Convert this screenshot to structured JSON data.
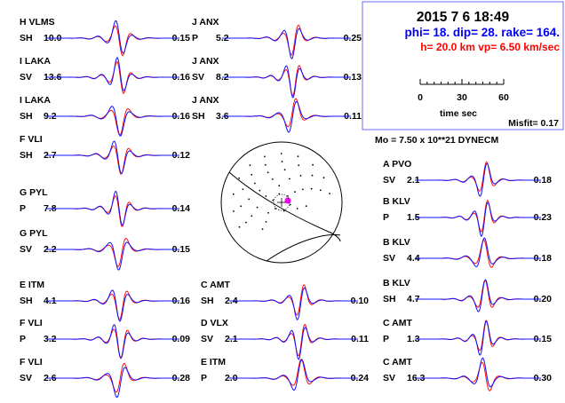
{
  "header": {
    "date_time": "2015  7  6   18:49",
    "mechanism": "phi=  18. dip= 28. rake= 164.",
    "depth_velocity": "h= 20.0 km  vp= 6.50 km/sec",
    "time_axis_ticks": [
      "0",
      "30",
      "60"
    ],
    "time_axis_label": "time sec",
    "misfit": "Misfit= 0.17",
    "moment": "Mo =  7.50 x 10**21 DYNECM"
  },
  "colors": {
    "observed": "#1010ff",
    "synthetic": "#ff1010",
    "title": "#000000",
    "mechanism": "#0000ff",
    "depth": "#ff0000",
    "pole_marker": "#ff00ff",
    "frame": "#6a6aff"
  },
  "chart_data": {
    "type": "line",
    "title": "2015  7  6   18:49",
    "xlabel": "time sec",
    "x_ticks": [
      0,
      30,
      60
    ],
    "mechanism": {
      "phi": 18,
      "dip": 28,
      "rake": 164
    },
    "depth_km": 20.0,
    "vp_km_per_sec": 6.5,
    "misfit": 0.17,
    "moment": "7.50 x 10**21 DYNECM",
    "series": [
      {
        "name": "observed",
        "color": "#1010ff"
      },
      {
        "name": "synthetic",
        "color": "#ff1010"
      }
    ],
    "stations": [
      {
        "code": "H",
        "station": "VLMS",
        "comp": "SH",
        "azimuth": "10.0",
        "amp": "0.15"
      },
      {
        "code": "I",
        "station": "LAKA",
        "comp": "SV",
        "azimuth": "13.6",
        "amp": "0.16"
      },
      {
        "code": "I",
        "station": "LAKA",
        "comp": "SH",
        "azimuth": "9.2",
        "amp": "0.16"
      },
      {
        "code": "F",
        "station": "VLI",
        "comp": "SH",
        "azimuth": "2.7",
        "amp": "0.12"
      },
      {
        "code": "G",
        "station": "PYL",
        "comp": "P",
        "azimuth": "7.8",
        "amp": "0.14"
      },
      {
        "code": "G",
        "station": "PYL",
        "comp": "SV",
        "azimuth": "2.2",
        "amp": "0.15"
      },
      {
        "code": "E",
        "station": "ITM",
        "comp": "SH",
        "azimuth": "4.1",
        "amp": "0.16"
      },
      {
        "code": "F",
        "station": "VLI",
        "comp": "P",
        "azimuth": "3.2",
        "amp": "0.09"
      },
      {
        "code": "F",
        "station": "VLI",
        "comp": "SV",
        "azimuth": "2.6",
        "amp": "0.28"
      },
      {
        "code": "J",
        "station": "ANX",
        "comp": "P",
        "azimuth": "5.2",
        "amp": "0.25"
      },
      {
        "code": "J",
        "station": "ANX",
        "comp": "SV",
        "azimuth": "8.2",
        "amp": "0.13"
      },
      {
        "code": "J",
        "station": "ANX",
        "comp": "SH",
        "azimuth": "3.6",
        "amp": "0.11"
      },
      {
        "code": "C",
        "station": "AMT",
        "comp": "SH",
        "azimuth": "2.4",
        "amp": "0.10"
      },
      {
        "code": "D",
        "station": "VLX",
        "comp": "SV",
        "azimuth": "2.1",
        "amp": "0.11"
      },
      {
        "code": "E",
        "station": "ITM",
        "comp": "P",
        "azimuth": "2.0",
        "amp": "0.24"
      },
      {
        "code": "A",
        "station": "PVO",
        "comp": "SV",
        "azimuth": "2.1",
        "amp": "0.18"
      },
      {
        "code": "B",
        "station": "KLV",
        "comp": "P",
        "azimuth": "1.5",
        "amp": "0.23"
      },
      {
        "code": "B",
        "station": "KLV",
        "comp": "SV",
        "azimuth": "4.4",
        "amp": "0.18"
      },
      {
        "code": "B",
        "station": "KLV",
        "comp": "SH",
        "azimuth": "4.7",
        "amp": "0.20"
      },
      {
        "code": "C",
        "station": "AMT",
        "comp": "P",
        "azimuth": "1.3",
        "amp": "0.15"
      },
      {
        "code": "C",
        "station": "AMT",
        "comp": "SV",
        "azimuth": "16.3",
        "amp": "0.30"
      }
    ]
  }
}
